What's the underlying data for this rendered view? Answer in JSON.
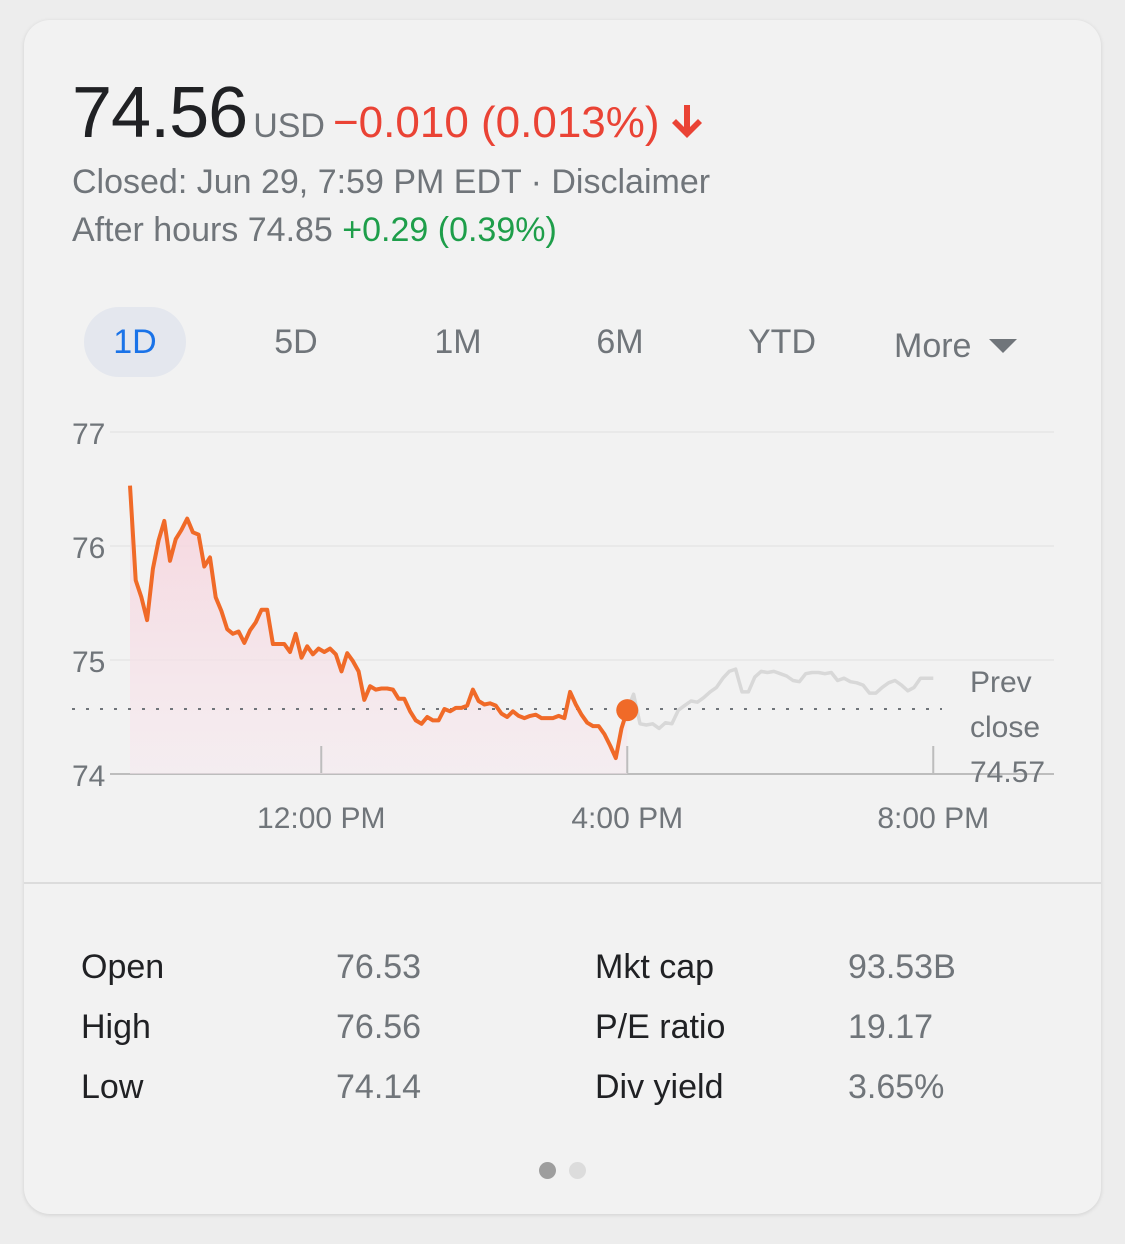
{
  "quote": {
    "price": "74.56",
    "currency": "USD",
    "change": "−0.010 (0.013%)",
    "closed_text": "Closed: Jun 29, 7:59 PM EDT · Disclaimer",
    "after_hours_label": "After hours 74.85",
    "after_hours_change": "+0.29 (0.39%)"
  },
  "tabs": [
    {
      "label": "1D",
      "active": true
    },
    {
      "label": "5D",
      "active": false
    },
    {
      "label": "1M",
      "active": false
    },
    {
      "label": "6M",
      "active": false
    },
    {
      "label": "YTD",
      "active": false
    },
    {
      "label": "More",
      "active": false
    }
  ],
  "colors": {
    "price_line": "#f06a28",
    "after_hours_line": "#d8d8d8",
    "negative": "#ea4335",
    "positive": "#1e9e4a",
    "active_tab": "#1a73e8"
  },
  "chart_data": {
    "type": "line",
    "ylim": [
      74,
      77
    ],
    "y_ticks": [
      "77",
      "76",
      "75",
      "74"
    ],
    "x_ticks": [
      "12:00 PM",
      "4:00 PM",
      "8:00 PM"
    ],
    "prev_close_label": [
      "Prev",
      "close",
      "74.57"
    ],
    "prev_close": 74.57,
    "series": [
      {
        "values": [
          76.53,
          75.7,
          75.55,
          75.35,
          75.8,
          76.05,
          76.22,
          75.87,
          76.06,
          76.14,
          76.24,
          76.12,
          76.1,
          75.82,
          75.9,
          75.55,
          75.43,
          75.27,
          75.23,
          75.25,
          75.15,
          75.26,
          75.33,
          75.44,
          75.44,
          75.14,
          75.14,
          75.14,
          75.07,
          75.23,
          75.02,
          75.12,
          75.05,
          75.1,
          75.07,
          75.1,
          75.05,
          74.9,
          75.06,
          74.99,
          74.9,
          74.65,
          74.77,
          74.74,
          74.75,
          74.75,
          74.74,
          74.66,
          74.66,
          74.55,
          74.47,
          74.44,
          74.5,
          74.47,
          74.47,
          74.57,
          74.55,
          74.58,
          74.58,
          74.6,
          74.74,
          74.64,
          74.61,
          74.62,
          74.6,
          74.53,
          74.5,
          74.55,
          74.51,
          74.49,
          74.51,
          74.52,
          74.49,
          74.49,
          74.49,
          74.51,
          74.49,
          74.72,
          74.61,
          74.52,
          74.45,
          74.42,
          74.42,
          74.35,
          74.25,
          74.14,
          74.4,
          74.56
        ]
      },
      {
        "values": [
          74.56,
          74.7,
          74.44,
          74.43,
          74.44,
          74.4,
          74.45,
          74.44,
          74.56,
          74.6,
          74.64,
          74.63,
          74.67,
          74.72,
          74.76,
          74.84,
          74.9,
          74.92,
          74.72,
          74.72,
          74.85,
          74.9,
          74.89,
          74.9,
          74.88,
          74.86,
          74.82,
          74.81,
          74.88,
          74.89,
          74.89,
          74.88,
          74.89,
          74.82,
          74.84,
          74.81,
          74.8,
          74.78,
          74.71,
          74.71,
          74.76,
          74.8,
          74.82,
          74.78,
          74.73,
          74.76,
          74.84,
          74.84,
          74.84
        ]
      }
    ]
  },
  "stats": {
    "left": [
      {
        "label": "Open",
        "value": "76.53"
      },
      {
        "label": "High",
        "value": "76.56"
      },
      {
        "label": "Low",
        "value": "74.14"
      }
    ],
    "right": [
      {
        "label": "Mkt cap",
        "value": "93.53B"
      },
      {
        "label": "P/E ratio",
        "value": "19.17"
      },
      {
        "label": "Div yield",
        "value": "3.65%"
      }
    ]
  }
}
